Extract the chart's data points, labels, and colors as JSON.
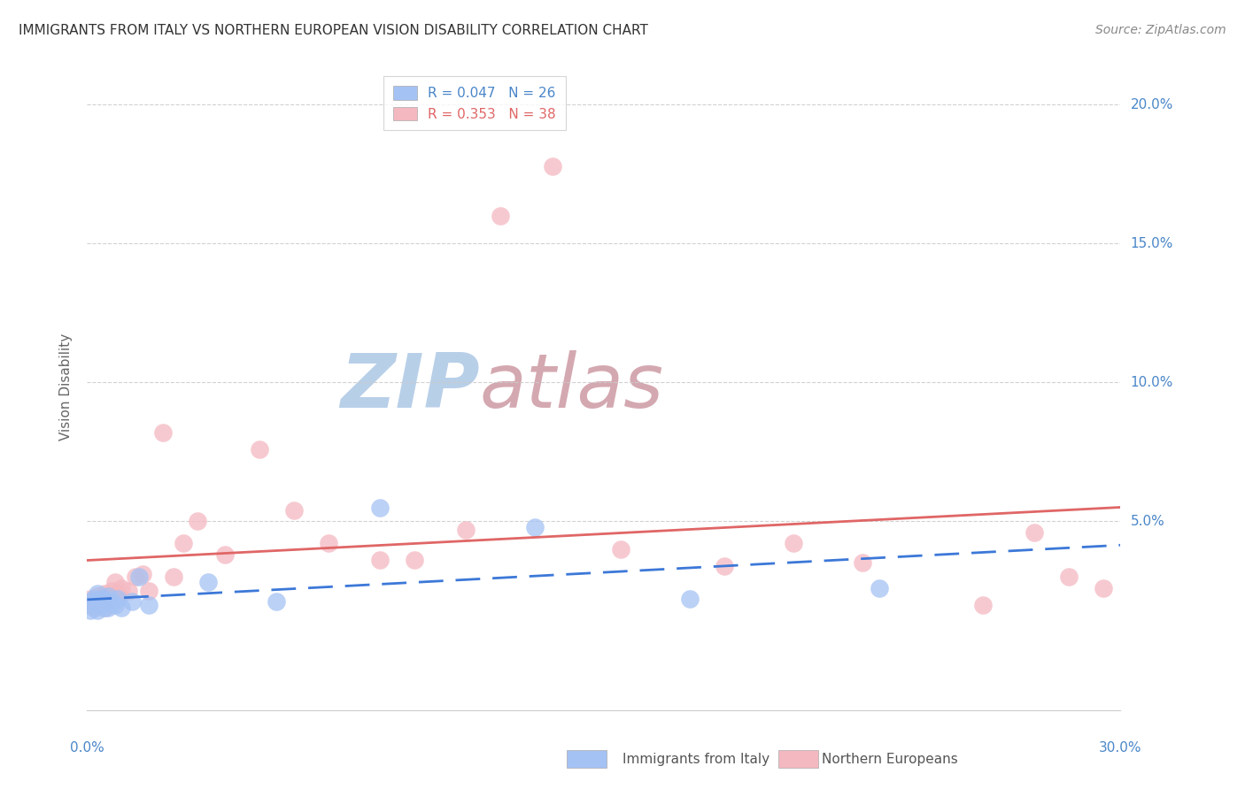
{
  "title": "IMMIGRANTS FROM ITALY VS NORTHERN EUROPEAN VISION DISABILITY CORRELATION CHART",
  "source": "Source: ZipAtlas.com",
  "ylabel": "Vision Disability",
  "xlim": [
    0.0,
    0.3
  ],
  "ylim": [
    -0.018,
    0.215
  ],
  "legend1_label": "R = 0.047   N = 26",
  "legend2_label": "R = 0.353   N = 38",
  "italy_color": "#a4c2f4",
  "northern_color": "#f4b8c1",
  "italy_line_color": "#3c78d8",
  "northern_line_color": "#e06666",
  "background_color": "#ffffff",
  "grid_color": "#cccccc",
  "watermark_zip": "ZIP",
  "watermark_atlas": "atlas",
  "watermark_zip_color": "#b8cfe8",
  "watermark_atlas_color": "#d4a8b0",
  "italy_x": [
    0.001,
    0.001,
    0.002,
    0.002,
    0.003,
    0.003,
    0.003,
    0.004,
    0.004,
    0.005,
    0.005,
    0.006,
    0.006,
    0.007,
    0.008,
    0.009,
    0.01,
    0.013,
    0.015,
    0.018,
    0.035,
    0.055,
    0.085,
    0.13,
    0.175,
    0.23
  ],
  "italy_y": [
    0.018,
    0.021,
    0.019,
    0.022,
    0.018,
    0.021,
    0.024,
    0.02,
    0.022,
    0.019,
    0.022,
    0.019,
    0.023,
    0.021,
    0.02,
    0.022,
    0.019,
    0.021,
    0.03,
    0.02,
    0.028,
    0.021,
    0.055,
    0.048,
    0.022,
    0.026
  ],
  "northern_x": [
    0.001,
    0.001,
    0.002,
    0.003,
    0.003,
    0.004,
    0.005,
    0.005,
    0.006,
    0.007,
    0.008,
    0.009,
    0.01,
    0.012,
    0.014,
    0.016,
    0.018,
    0.022,
    0.025,
    0.028,
    0.032,
    0.04,
    0.05,
    0.06,
    0.07,
    0.085,
    0.095,
    0.11,
    0.12,
    0.135,
    0.155,
    0.185,
    0.205,
    0.225,
    0.26,
    0.275,
    0.285,
    0.295
  ],
  "northern_y": [
    0.02,
    0.022,
    0.019,
    0.023,
    0.021,
    0.022,
    0.019,
    0.024,
    0.021,
    0.025,
    0.028,
    0.024,
    0.026,
    0.025,
    0.03,
    0.031,
    0.025,
    0.082,
    0.03,
    0.042,
    0.05,
    0.038,
    0.076,
    0.054,
    0.042,
    0.036,
    0.036,
    0.047,
    0.16,
    0.178,
    0.04,
    0.034,
    0.042,
    0.035,
    0.02,
    0.046,
    0.03,
    0.026
  ]
}
